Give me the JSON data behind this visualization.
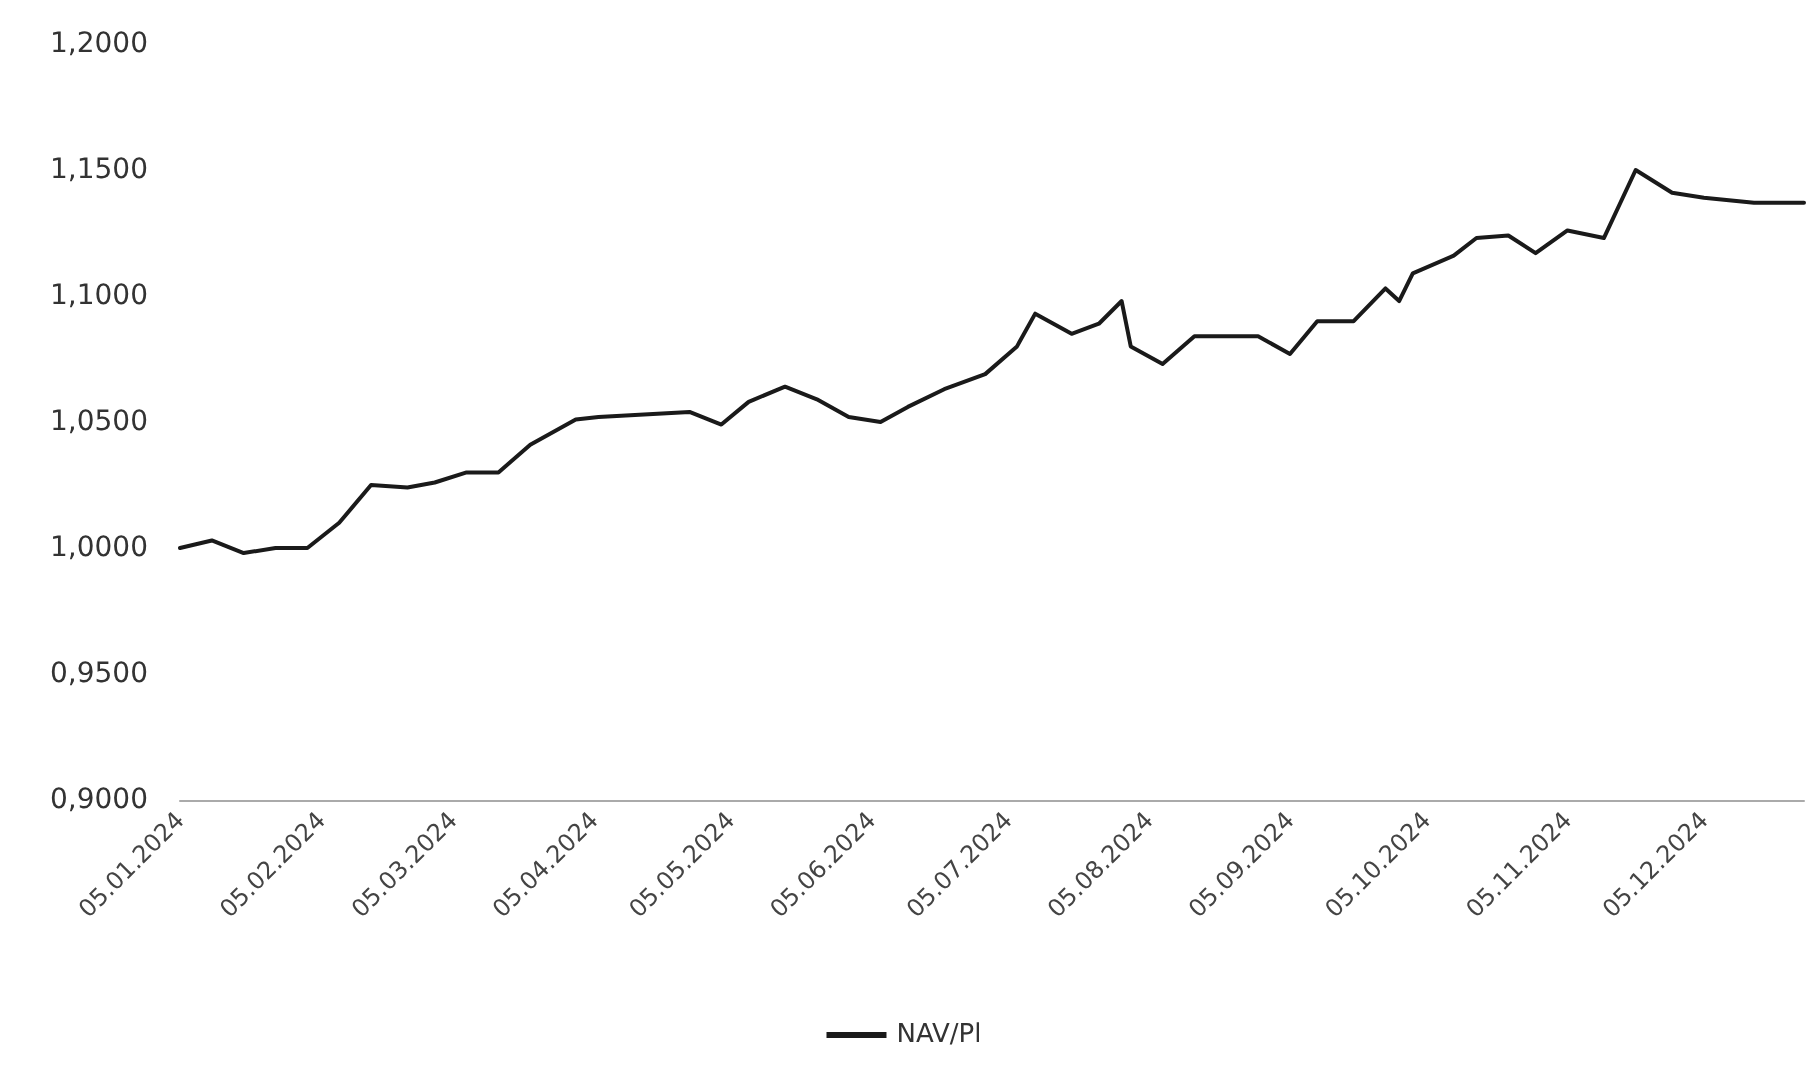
{
  "chart_data": {
    "type": "line",
    "x": [
      "2024-01-05",
      "2024-01-12",
      "2024-01-19",
      "2024-01-26",
      "2024-02-02",
      "2024-02-09",
      "2024-02-16",
      "2024-02-24",
      "2024-03-01",
      "2024-03-08",
      "2024-03-15",
      "2024-03-22",
      "2024-04-01",
      "2024-04-06",
      "2024-04-26",
      "2024-05-03",
      "2024-05-09",
      "2024-05-17",
      "2024-05-24",
      "2024-05-31",
      "2024-06-07",
      "2024-06-13",
      "2024-06-21",
      "2024-06-30",
      "2024-07-07",
      "2024-07-11",
      "2024-07-19",
      "2024-07-25",
      "2024-07-30",
      "2024-08-01",
      "2024-08-08",
      "2024-08-15",
      "2024-08-29",
      "2024-09-05",
      "2024-09-11",
      "2024-09-19",
      "2024-09-26",
      "2024-09-29",
      "2024-10-02",
      "2024-10-11",
      "2024-10-16",
      "2024-10-23",
      "2024-10-29",
      "2024-11-05",
      "2024-11-13",
      "2024-11-20",
      "2024-11-28",
      "2024-12-05",
      "2024-12-16",
      "2024-12-27"
    ],
    "series": [
      {
        "name": "NAV/Pl",
        "color": "#1a1a1a",
        "values": [
          1.0,
          1.003,
          0.998,
          1.0,
          1.0,
          1.01,
          1.025,
          1.024,
          1.026,
          1.03,
          1.03,
          1.041,
          1.051,
          1.052,
          1.054,
          1.049,
          1.058,
          1.064,
          1.059,
          1.052,
          1.05,
          1.056,
          1.063,
          1.069,
          1.08,
          1.093,
          1.085,
          1.089,
          1.098,
          1.08,
          1.073,
          1.084,
          1.084,
          1.077,
          1.09,
          1.09,
          1.103,
          1.098,
          1.109,
          1.116,
          1.123,
          1.124,
          1.117,
          1.126,
          1.123,
          1.15,
          1.141,
          1.139,
          1.137,
          1.137
        ]
      }
    ],
    "xlim": [
      "2024-01-05",
      "2024-12-27"
    ],
    "xticks": [
      {
        "value": "2024-01-05",
        "label": "05.01.2024"
      },
      {
        "value": "2024-02-05",
        "label": "05.02.2024"
      },
      {
        "value": "2024-03-05",
        "label": "05.03.2024"
      },
      {
        "value": "2024-04-05",
        "label": "05.04.2024"
      },
      {
        "value": "2024-05-05",
        "label": "05.05.2024"
      },
      {
        "value": "2024-06-05",
        "label": "05.06.2024"
      },
      {
        "value": "2024-07-05",
        "label": "05.07.2024"
      },
      {
        "value": "2024-08-05",
        "label": "05.08.2024"
      },
      {
        "value": "2024-09-05",
        "label": "05.09.2024"
      },
      {
        "value": "2024-10-05",
        "label": "05.10.2024"
      },
      {
        "value": "2024-11-05",
        "label": "05.11.2024"
      },
      {
        "value": "2024-12-05",
        "label": "05.12.2024"
      }
    ],
    "ylim": [
      0.9,
      1.2
    ],
    "yticks": [
      {
        "value": 0.9,
        "label": "0,9000"
      },
      {
        "value": 0.95,
        "label": "0,9500"
      },
      {
        "value": 1.0,
        "label": "1,0000"
      },
      {
        "value": 1.05,
        "label": "1,0500"
      },
      {
        "value": 1.1,
        "label": "1,1000"
      },
      {
        "value": 1.15,
        "label": "1,1500"
      },
      {
        "value": 1.2,
        "label": "1,2000"
      }
    ],
    "grid": false,
    "legend": "bottom",
    "marker": "none",
    "line_style": "solid"
  }
}
